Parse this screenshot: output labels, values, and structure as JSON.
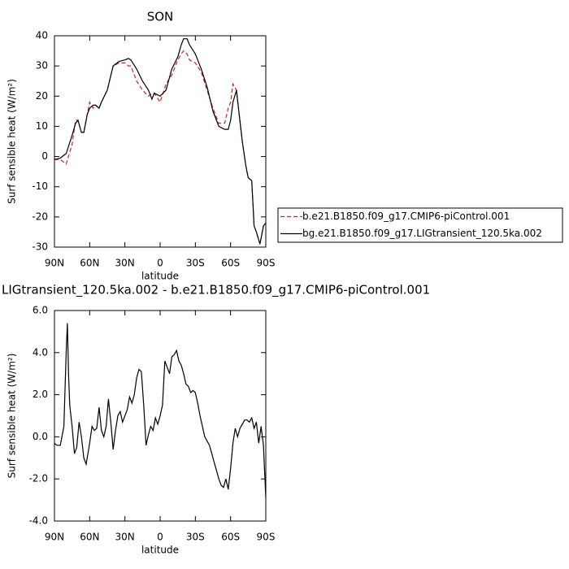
{
  "chart_data": [
    {
      "type": "line",
      "title": "SON",
      "x_label": "latitude",
      "y_label": "Surf sensible heat (W/m²)",
      "x": [
        90,
        85,
        80,
        75,
        72,
        70,
        67,
        65,
        62,
        60,
        57,
        55,
        52,
        50,
        45,
        40,
        35,
        30,
        27,
        25,
        20,
        15,
        10,
        7,
        5,
        0,
        -5,
        -10,
        -15,
        -18,
        -20,
        -23,
        -25,
        -30,
        -35,
        -40,
        -45,
        -50,
        -55,
        -58,
        -60,
        -62,
        -65,
        -67,
        -70,
        -73,
        -75,
        -78,
        -80,
        -82,
        -85,
        -88,
        -90
      ],
      "series": [
        {
          "name": "b.e21.B1850.f09_g17.CMIP6-piControl.001",
          "color": "#d62020",
          "dash": true,
          "values": [
            -1,
            -1,
            -2.5,
            4,
            12,
            12,
            8,
            8,
            14,
            18,
            16,
            17,
            16,
            18,
            22,
            30,
            31,
            31,
            30,
            30,
            25,
            22,
            20,
            21,
            21,
            18,
            24,
            27,
            32,
            34,
            35,
            34,
            32,
            31,
            28,
            22,
            16,
            11,
            11,
            16,
            18,
            24,
            22,
            15,
            5,
            -3,
            -7,
            -8,
            -23,
            -25,
            -29,
            -23,
            -22
          ]
        },
        {
          "name": "bg.e21.B1850.f09_g17.LIGtransient_120.5ka.002",
          "color": "#000000",
          "dash": false,
          "values": [
            -1,
            -0.5,
            1,
            7,
            11,
            12,
            8,
            8,
            14,
            16,
            17,
            17,
            16,
            18,
            22,
            30,
            31.5,
            32,
            32.5,
            32,
            29,
            25,
            22,
            19,
            21,
            20,
            22,
            29,
            33,
            37,
            39,
            39,
            37,
            34,
            29,
            23,
            15,
            10,
            9,
            9,
            12,
            18,
            22,
            15,
            5,
            -3,
            -7,
            -8,
            -23,
            -25,
            -29,
            -23,
            -22
          ]
        }
      ],
      "xlim": [
        90,
        -90
      ],
      "xticks": [
        {
          "value": 90,
          "label": "90N"
        },
        {
          "value": 60,
          "label": "60N"
        },
        {
          "value": 30,
          "label": "30N"
        },
        0,
        {
          "value": -30,
          "label": "30S"
        },
        {
          "value": -60,
          "label": "60S"
        },
        {
          "value": -90,
          "label": "90S"
        }
      ],
      "ylim": [
        -30,
        40
      ],
      "yticks": [
        -30,
        -20,
        -10,
        0,
        10,
        20,
        30,
        40
      ],
      "legend": "right"
    },
    {
      "type": "line",
      "title": "LIGtransient_120.5ka.002 - b.e21.B1850.f09_g17.CMIP6-piControl.001",
      "x_label": "latitude",
      "y_label": "Surf sensible heat (W/m²)",
      "x": [
        90,
        88,
        85,
        82,
        80,
        79,
        78,
        77,
        75,
        73,
        71,
        69,
        67,
        65,
        63,
        60,
        58,
        56,
        54,
        52,
        50,
        48,
        46,
        44,
        42,
        40,
        38,
        36,
        34,
        32,
        30,
        28,
        26,
        24,
        22,
        20,
        18,
        16,
        14,
        12,
        10,
        8,
        6,
        4,
        2,
        0,
        -2,
        -4,
        -6,
        -8,
        -10,
        -12,
        -14,
        -16,
        -18,
        -20,
        -22,
        -24,
        -26,
        -28,
        -30,
        -32,
        -34,
        -36,
        -38,
        -40,
        -42,
        -44,
        -46,
        -48,
        -50,
        -52,
        -54,
        -56,
        -58,
        -60,
        -62,
        -64,
        -66,
        -68,
        -70,
        -72,
        -74,
        -76,
        -78,
        -80,
        -82,
        -84,
        -86,
        -88,
        -90
      ],
      "values": [
        -0.3,
        -0.4,
        -0.4,
        0.5,
        4,
        5.4,
        3,
        1.5,
        0.5,
        -0.8,
        -0.5,
        0.7,
        0,
        -1,
        -1.3,
        -0.3,
        0.5,
        0.3,
        0.4,
        1.4,
        0.3,
        0,
        0.5,
        1.8,
        0.7,
        -0.6,
        0.3,
        1,
        1.2,
        0.7,
        1,
        1.3,
        1.9,
        1.6,
        2,
        2.8,
        3.2,
        3.1,
        1.5,
        -0.4,
        0.1,
        0.5,
        0.3,
        0.9,
        0.6,
        1,
        1.5,
        3.6,
        3.3,
        3,
        3.8,
        3.9,
        4.1,
        3.6,
        3.4,
        3,
        2.5,
        2.4,
        2.1,
        2.2,
        2.1,
        1.6,
        1,
        0.5,
        0,
        -0.2,
        -0.4,
        -0.8,
        -1.2,
        -1.6,
        -2,
        -2.3,
        -2.4,
        -2,
        -2.5,
        -1.5,
        -0.3,
        0.4,
        0,
        0.4,
        0.6,
        0.8,
        0.8,
        0.7,
        0.9,
        0.4,
        0.7,
        -0.3,
        0.5,
        -0.4,
        -2.9
      ],
      "color": "#000000",
      "xlim": [
        90,
        -90
      ],
      "xticks": [
        {
          "value": 90,
          "label": "90N"
        },
        {
          "value": 60,
          "label": "60N"
        },
        {
          "value": 30,
          "label": "30N"
        },
        0,
        {
          "value": -30,
          "label": "30S"
        },
        {
          "value": -60,
          "label": "60S"
        },
        {
          "value": -90,
          "label": "90S"
        }
      ],
      "ylim": [
        -4,
        6
      ],
      "yticks": [
        {
          "value": -4,
          "label": "-4.0"
        },
        {
          "value": -2,
          "label": "-2.0"
        },
        {
          "value": 0,
          "label": "0.0"
        },
        {
          "value": 2,
          "label": "2.0"
        },
        {
          "value": 4,
          "label": "4.0"
        },
        {
          "value": 6,
          "label": "6.0"
        }
      ]
    }
  ]
}
